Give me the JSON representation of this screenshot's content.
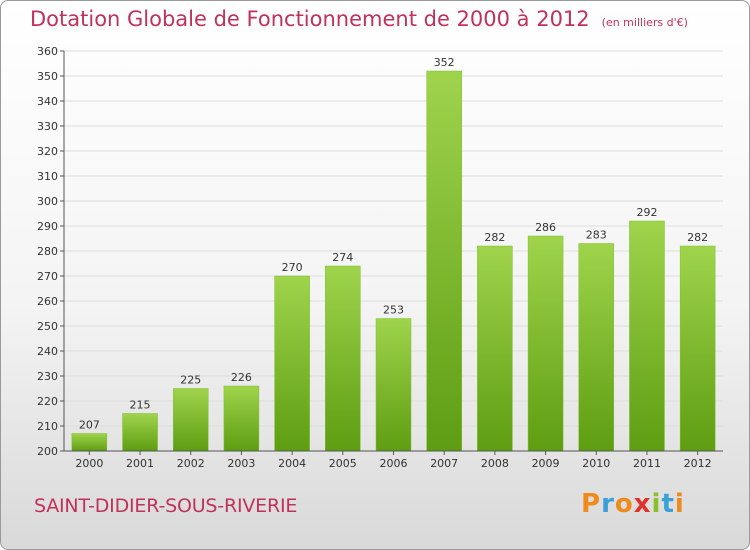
{
  "header": {
    "title": "Dotation Globale de Fonctionnement de 2000 à 2012",
    "unit": "(en milliers d'€)"
  },
  "footer": {
    "commune": "SAINT-DIDIER-SOUS-RIVERIE",
    "logo_letters": [
      "P",
      "r",
      "o",
      "x",
      "i",
      "t",
      "i"
    ],
    "logo_colors": [
      "#f08a1c",
      "#3aa0d8",
      "#f08a1c",
      "#e0322a",
      "#8bbf2a",
      "#3aa0d8",
      "#f08a1c"
    ]
  },
  "colors": {
    "bar_top": "#9fd44c",
    "bar_bottom": "#5e9d12",
    "grid": "#dddddd",
    "title": "#c0325a"
  },
  "chart_data": {
    "type": "bar",
    "title": "Dotation Globale de Fonctionnement de 2000 à 2012",
    "subtitle": "(en milliers d'€)",
    "xlabel": "",
    "ylabel": "",
    "categories": [
      "2000",
      "2001",
      "2002",
      "2003",
      "2004",
      "2005",
      "2006",
      "2007",
      "2008",
      "2009",
      "2010",
      "2011",
      "2012"
    ],
    "values": [
      207,
      215,
      225,
      226,
      270,
      274,
      253,
      352,
      282,
      286,
      283,
      292,
      282
    ],
    "ylim": [
      200,
      360
    ],
    "yticks": [
      200,
      210,
      220,
      230,
      240,
      250,
      260,
      270,
      280,
      290,
      300,
      310,
      320,
      330,
      340,
      350,
      360
    ],
    "grid": true,
    "legend": "none"
  }
}
